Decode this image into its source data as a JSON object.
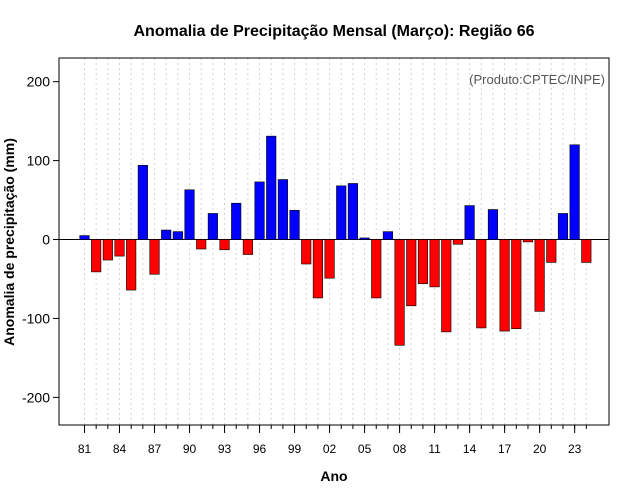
{
  "chart_data": {
    "type": "bar",
    "title": "Anomalia de Precipitação Mensal (Março): Região 66",
    "xlabel": "Ano",
    "ylabel": "Anomalia de precipitação (mm)",
    "credit": "(Produto:CPTEC/INPE)",
    "ylim": [
      -235,
      230
    ],
    "yticks": [
      -200,
      -100,
      0,
      100,
      200
    ],
    "years": [
      1981,
      1982,
      1983,
      1984,
      1985,
      1986,
      1987,
      1988,
      1989,
      1990,
      1991,
      1992,
      1993,
      1994,
      1995,
      1996,
      1997,
      1998,
      1999,
      2000,
      2001,
      2002,
      2003,
      2004,
      2005,
      2006,
      2007,
      2008,
      2009,
      2010,
      2011,
      2012,
      2013,
      2014,
      2015,
      2016,
      2017,
      2018,
      2019,
      2020,
      2021,
      2022,
      2023,
      2024
    ],
    "values": [
      5,
      -41,
      -26,
      -21,
      -64,
      94,
      -44,
      12,
      10,
      63,
      -12,
      33,
      -13,
      46,
      -19,
      73,
      131,
      76,
      37,
      -31,
      -74,
      -49,
      68,
      71,
      2,
      -74,
      10,
      -134,
      -84,
      -56,
      -60,
      -117,
      -6,
      43,
      -112,
      38,
      -116,
      -113,
      -3,
      -91,
      -29,
      33,
      120,
      -29
    ],
    "x_tick_labels": [
      {
        "year": 1981,
        "label": "81"
      },
      {
        "year": 1984,
        "label": "84"
      },
      {
        "year": 1987,
        "label": "87"
      },
      {
        "year": 1990,
        "label": "90"
      },
      {
        "year": 1993,
        "label": "93"
      },
      {
        "year": 1996,
        "label": "96"
      },
      {
        "year": 1999,
        "label": "99"
      },
      {
        "year": 2002,
        "label": "02"
      },
      {
        "year": 2005,
        "label": "05"
      },
      {
        "year": 2008,
        "label": "08"
      },
      {
        "year": 2011,
        "label": "11"
      },
      {
        "year": 2014,
        "label": "14"
      },
      {
        "year": 2017,
        "label": "17"
      },
      {
        "year": 2020,
        "label": "20"
      },
      {
        "year": 2023,
        "label": "23"
      }
    ],
    "colors": {
      "positive": "#0000ff",
      "negative": "#ff0000",
      "zero_line": "#000000"
    },
    "grid": true
  }
}
